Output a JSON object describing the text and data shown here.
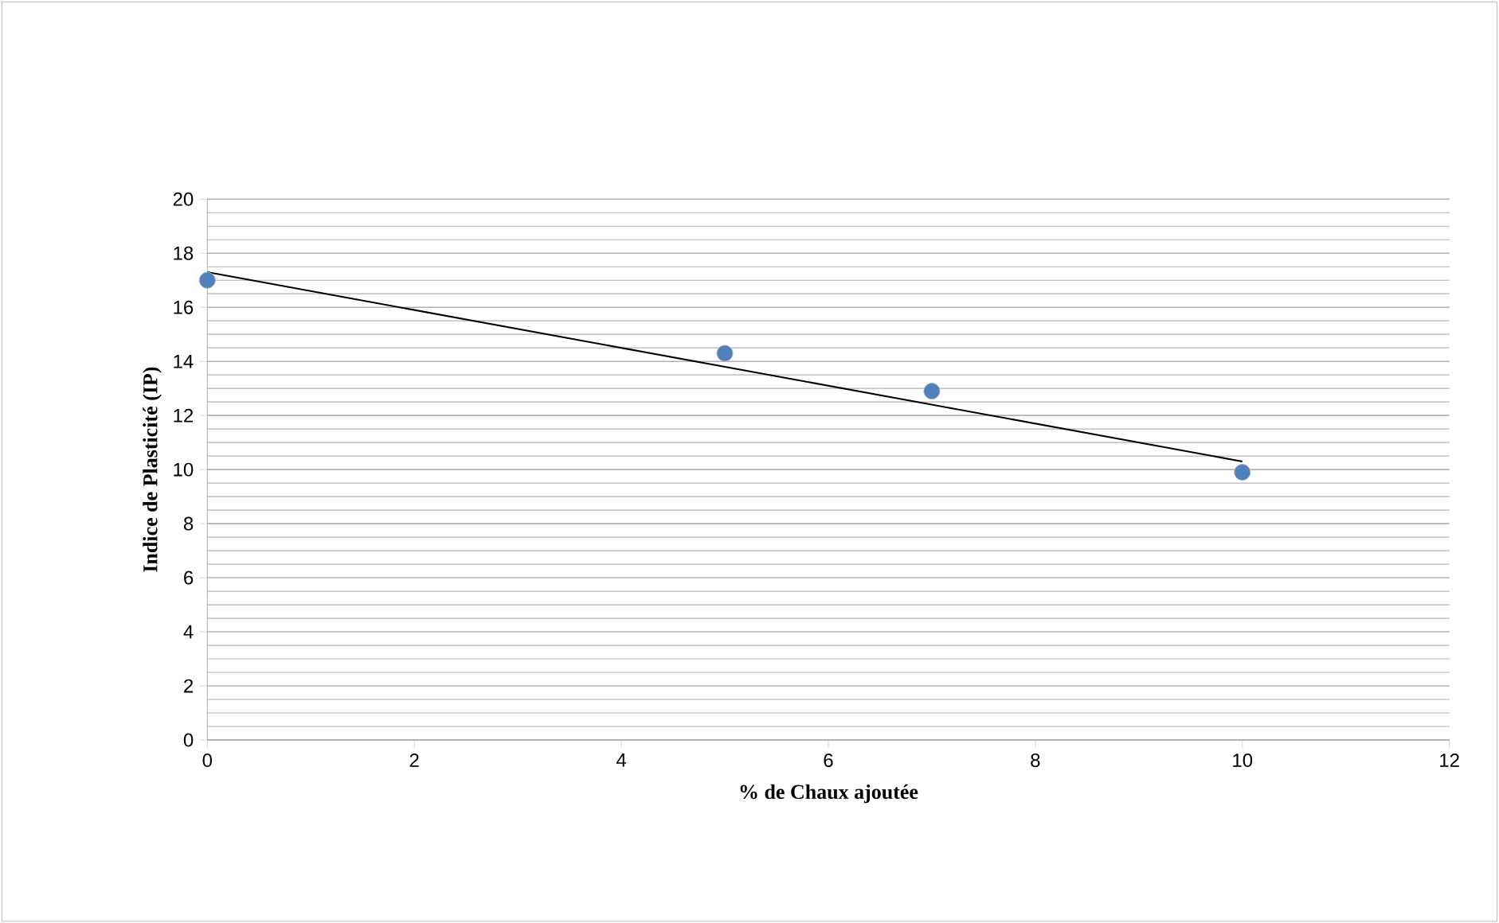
{
  "chart_data": {
    "type": "scatter",
    "xlabel": "% de Chaux ajoutée",
    "ylabel": "Indice de Plasticité (IP)",
    "xlim": [
      0,
      12
    ],
    "xticks": [
      0,
      2,
      4,
      6,
      8,
      10,
      12
    ],
    "ylim": [
      0,
      20
    ],
    "yticks": [
      0,
      2,
      4,
      6,
      8,
      10,
      12,
      14,
      16,
      18,
      20
    ],
    "grid": "y",
    "series": [
      {
        "color": "#4f81bd",
        "marker": "circle",
        "x": [
          0,
          5,
          7,
          10
        ],
        "values": [
          17,
          14.3,
          12.9,
          9.9
        ]
      },
      {
        "type": "line",
        "color": "#000000",
        "marker": "none",
        "line_style": "solid",
        "x": [
          0,
          10
        ],
        "values": [
          17.3,
          10.3
        ]
      }
    ]
  }
}
